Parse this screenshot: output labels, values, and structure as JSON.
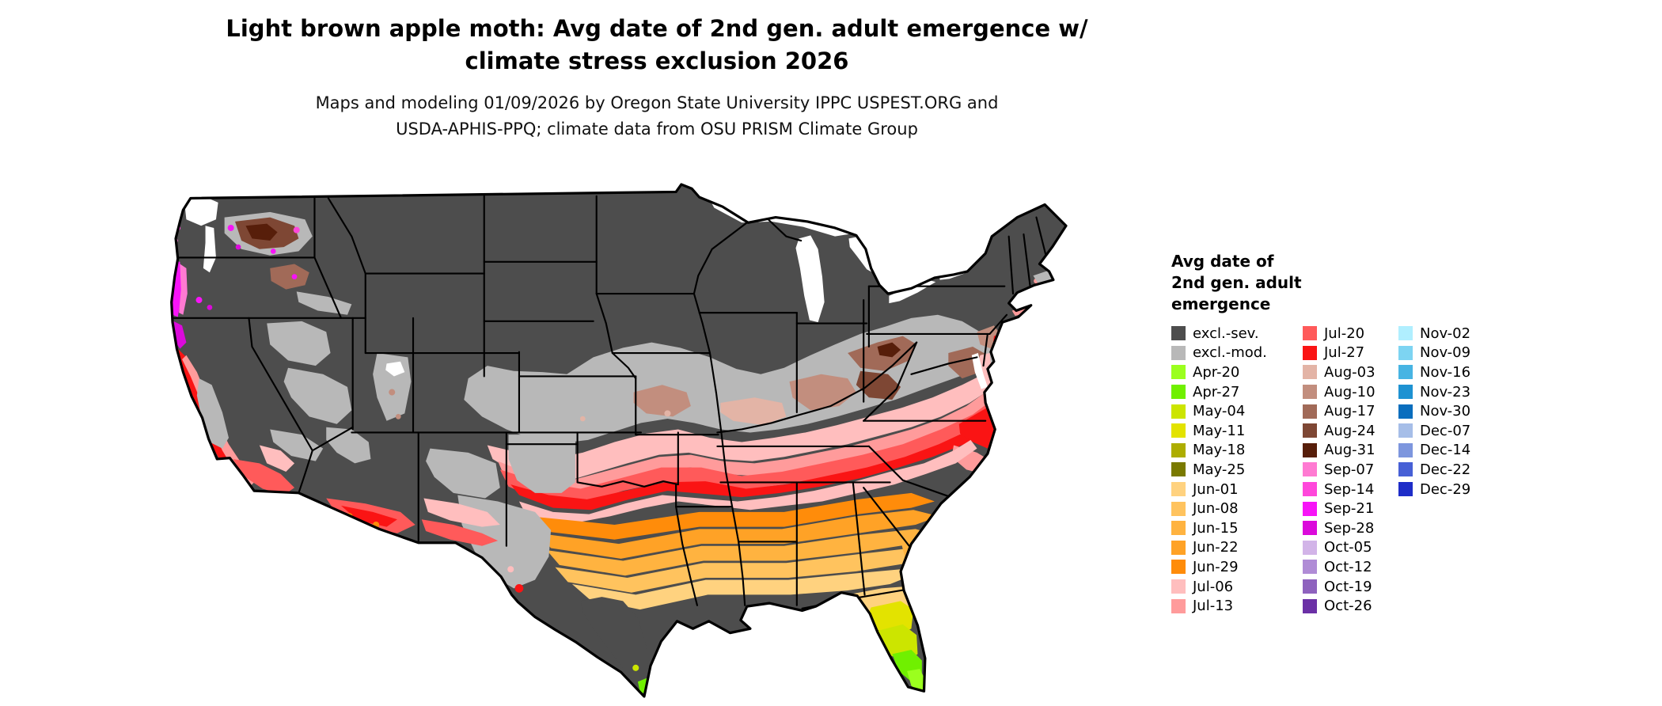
{
  "header": {
    "title_line1": "Light brown apple moth: Avg date of 2nd gen. adult emergence w/",
    "title_line2": "climate stress exclusion 2026",
    "subtitle_line1": "Maps and modeling 01/09/2026 by Oregon State University IPPC USPEST.ORG and",
    "subtitle_line2": "USDA-APHIS-PPQ; climate data from OSU PRISM Climate Group"
  },
  "palette": {
    "excl_sev": "#4D4D4D",
    "excl_mod": "#B8B8B8",
    "apr20": "#9BFF1E",
    "apr27": "#70F000",
    "may04": "#CCE500",
    "may11": "#E3E300",
    "may18": "#ADAD00",
    "may25": "#7A7A00",
    "jun01": "#FFD27F",
    "jun08": "#FFC35E",
    "jun15": "#FFB340",
    "jun22": "#FFA226",
    "jun29": "#FF8C0A",
    "jul06": "#FFBEBE",
    "jul13": "#FF9B9B",
    "jul20": "#FF5A5A",
    "jul27": "#FA1414",
    "aug03": "#E3B4A6",
    "aug10": "#C28E7E",
    "aug17": "#A16A58",
    "aug24": "#7E4734",
    "aug31": "#571E0A",
    "sep07": "#FF7AD2",
    "sep14": "#FF47DB",
    "sep21": "#F714F7",
    "sep28": "#DB0ADB",
    "oct05": "#D2B4E8",
    "oct12": "#B08CD6",
    "oct19": "#8E62BE",
    "oct26": "#6B30A6",
    "nov02": "#B0EFFF",
    "nov09": "#7DD4F2",
    "nov16": "#47B4E3",
    "nov23": "#1E92D2",
    "nov30": "#0A6EBE",
    "dec07": "#A6BEE8",
    "dec14": "#7D96DE",
    "dec22": "#4760D6",
    "dec29": "#1E2DC8"
  },
  "legend": {
    "title_lines": [
      "Avg date of",
      "2nd gen. adult",
      "emergence"
    ],
    "columns": [
      [
        {
          "key": "excl_sev",
          "label": "excl.-sev."
        },
        {
          "key": "excl_mod",
          "label": "excl.-mod."
        },
        {
          "key": "apr20",
          "label": "Apr-20"
        },
        {
          "key": "apr27",
          "label": "Apr-27"
        },
        {
          "key": "may04",
          "label": "May-04"
        },
        {
          "key": "may11",
          "label": "May-11"
        },
        {
          "key": "may18",
          "label": "May-18"
        },
        {
          "key": "may25",
          "label": "May-25"
        },
        {
          "key": "jun01",
          "label": "Jun-01"
        },
        {
          "key": "jun08",
          "label": "Jun-08"
        },
        {
          "key": "jun15",
          "label": "Jun-15"
        },
        {
          "key": "jun22",
          "label": "Jun-22"
        },
        {
          "key": "jun29",
          "label": "Jun-29"
        },
        {
          "key": "jul06",
          "label": "Jul-06"
        },
        {
          "key": "jul13",
          "label": "Jul-13"
        }
      ],
      [
        {
          "key": "jul20",
          "label": "Jul-20"
        },
        {
          "key": "jul27",
          "label": "Jul-27"
        },
        {
          "key": "aug03",
          "label": "Aug-03"
        },
        {
          "key": "aug10",
          "label": "Aug-10"
        },
        {
          "key": "aug17",
          "label": "Aug-17"
        },
        {
          "key": "aug24",
          "label": "Aug-24"
        },
        {
          "key": "aug31",
          "label": "Aug-31"
        },
        {
          "key": "sep07",
          "label": "Sep-07"
        },
        {
          "key": "sep14",
          "label": "Sep-14"
        },
        {
          "key": "sep21",
          "label": "Sep-21"
        },
        {
          "key": "sep28",
          "label": "Sep-28"
        },
        {
          "key": "oct05",
          "label": "Oct-05"
        },
        {
          "key": "oct12",
          "label": "Oct-12"
        },
        {
          "key": "oct19",
          "label": "Oct-19"
        },
        {
          "key": "oct26",
          "label": "Oct-26"
        }
      ],
      [
        {
          "key": "nov02",
          "label": "Nov-02"
        },
        {
          "key": "nov09",
          "label": "Nov-09"
        },
        {
          "key": "nov16",
          "label": "Nov-16"
        },
        {
          "key": "nov23",
          "label": "Nov-23"
        },
        {
          "key": "nov30",
          "label": "Nov-30"
        },
        {
          "key": "dec07",
          "label": "Dec-07"
        },
        {
          "key": "dec14",
          "label": "Dec-14"
        },
        {
          "key": "dec22",
          "label": "Dec-22"
        },
        {
          "key": "dec29",
          "label": "Dec-29"
        }
      ]
    ]
  }
}
